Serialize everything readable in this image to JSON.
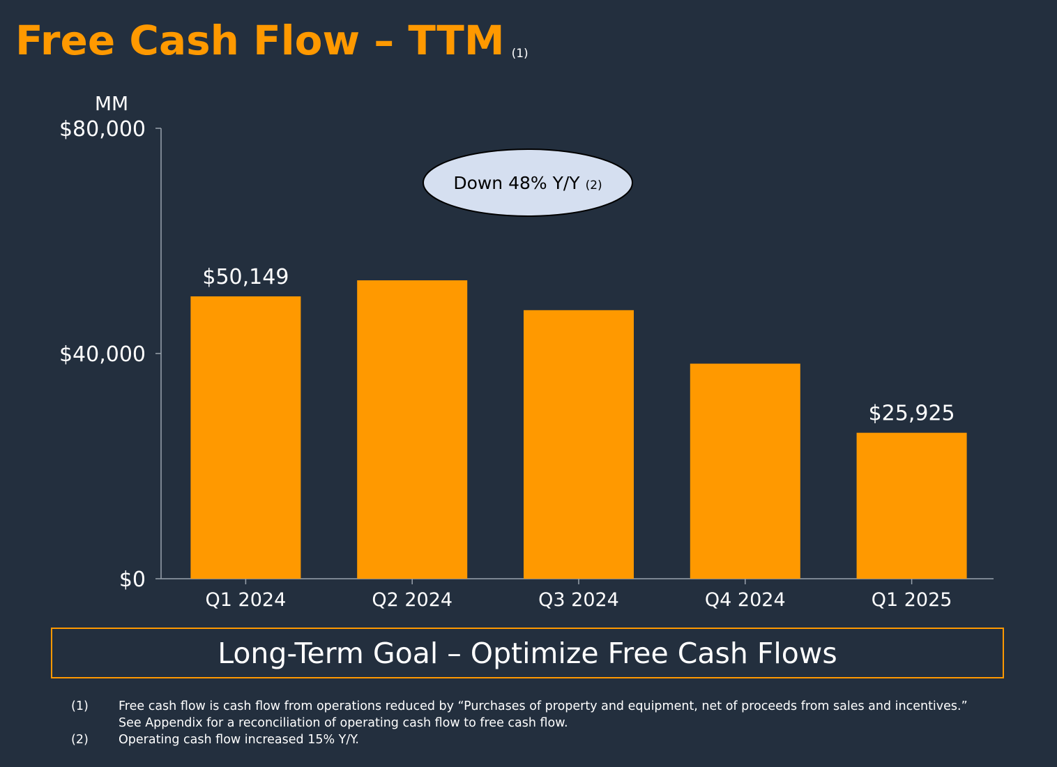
{
  "title": "Free Cash Flow – TTM",
  "title_note": "(1)",
  "chart_data": {
    "type": "bar",
    "unit_label": "MM",
    "categories": [
      "Q1 2024",
      "Q2 2024",
      "Q3 2024",
      "Q4 2024",
      "Q1 2025"
    ],
    "values": [
      50149,
      53000,
      47700,
      38200,
      25925
    ],
    "data_labels": [
      "$50,149",
      "",
      "",
      "",
      "$25,925"
    ],
    "y_ticks": [
      {
        "value": 80000,
        "label": "$80,000"
      },
      {
        "value": 40000,
        "label": "$40,000"
      },
      {
        "value": 0,
        "label": "$0"
      }
    ],
    "ylim": [
      0,
      80000
    ],
    "bar_color": "#ff9900",
    "grid": false,
    "annotation": {
      "text": "Down 48% Y/Y",
      "note": "(2)",
      "fill": "#d5dff0"
    }
  },
  "goal": {
    "text": "Long-Term Goal – Optimize Free Cash Flows",
    "border_color": "#ff9900"
  },
  "footnotes": [
    {
      "mark": "(1)",
      "lines": [
        "Free cash flow is cash flow from operations reduced by “Purchases of property and equipment, net of proceeds from sales and incentives.”",
        "See Appendix for a reconciliation of operating cash flow to free cash flow."
      ]
    },
    {
      "mark": "(2)",
      "lines": [
        "Operating cash flow increased 15% Y/Y."
      ]
    }
  ],
  "colors": {
    "background": "#232f3e",
    "accent": "#ff9900",
    "text": "#ffffff",
    "axis": "#9aa3ad"
  }
}
